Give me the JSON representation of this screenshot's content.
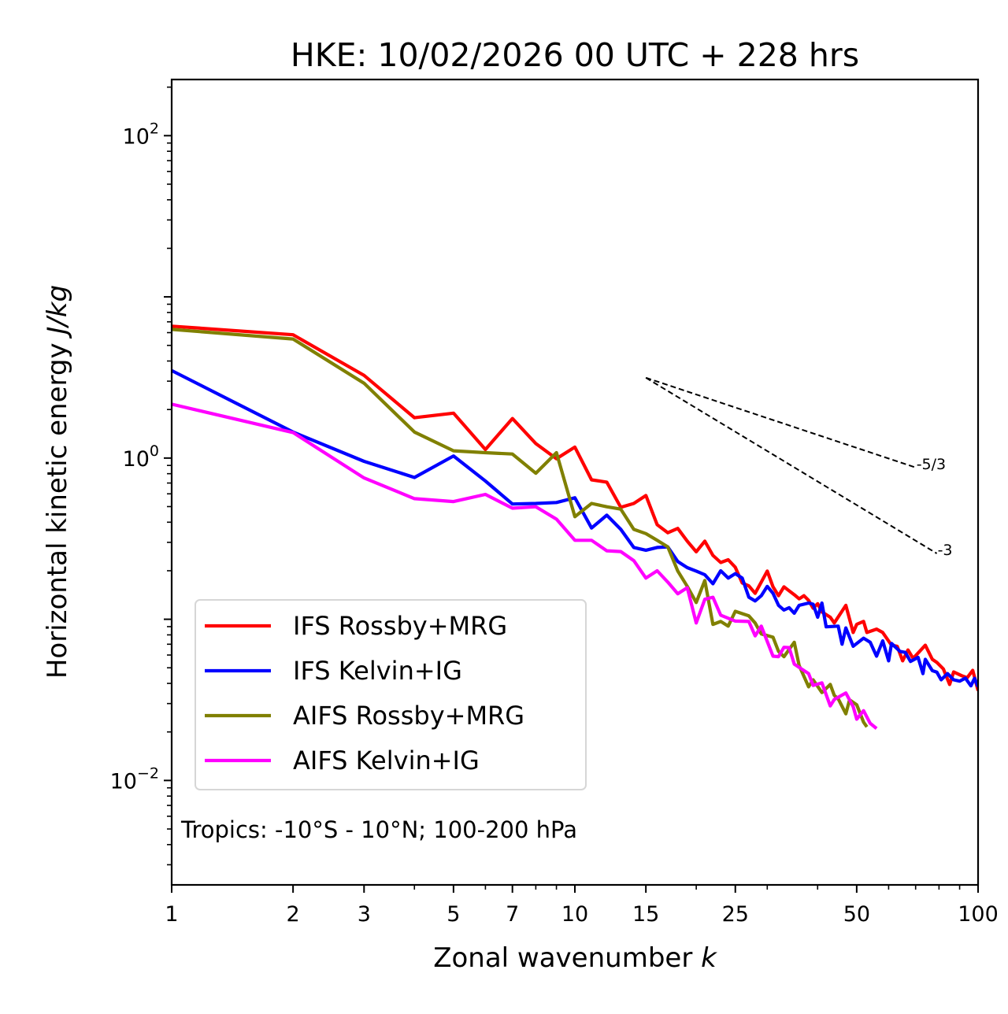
{
  "chart_data": {
    "type": "line",
    "title": "HKE: 10/02/2026 00 UTC + 228 hrs",
    "xlabel": "Zonal wavenumber",
    "xlabel_italic": "k",
    "ylabel": "Horizontal kinetic energy",
    "ylabel_italic": "J/kg",
    "xscale": "log",
    "yscale": "log",
    "xlim": [
      1,
      100
    ],
    "ylim": [
      0.00225,
      223
    ],
    "grid": false,
    "legend_position": "lower-left",
    "x_ticks": [
      {
        "value": 1,
        "label": "1"
      },
      {
        "value": 2,
        "label": "2"
      },
      {
        "value": 3,
        "label": "3"
      },
      {
        "value": 5,
        "label": "5"
      },
      {
        "value": 7,
        "label": "7"
      },
      {
        "value": 10,
        "label": "10"
      },
      {
        "value": 15,
        "label": "15"
      },
      {
        "value": 25,
        "label": "25"
      },
      {
        "value": 50,
        "label": "50"
      },
      {
        "value": 100,
        "label": "100"
      }
    ],
    "x_minor_ticks": [
      4,
      6,
      8,
      9,
      20,
      30,
      40,
      60,
      70,
      80,
      90
    ],
    "y_ticks": [
      {
        "value": 0.01,
        "base": "10",
        "exp": "−2"
      },
      {
        "value": 1,
        "base": "10",
        "exp": "0"
      },
      {
        "value": 100,
        "base": "10",
        "exp": "2"
      }
    ],
    "annotation": "Tropics: -10°S - 10°N; 100-200 hPa",
    "reference_lines": [
      {
        "label": "-5/3",
        "start": [
          15,
          3.15
        ],
        "end": [
          70,
          0.874
        ]
      },
      {
        "label": "-3",
        "start": [
          15,
          3.15
        ],
        "end": [
          79,
          0.256
        ]
      }
    ],
    "series": [
      {
        "name": "IFS Rossby+MRG",
        "color": "#ff0000",
        "x": [
          1,
          2,
          3,
          4,
          5,
          6,
          7,
          8,
          9,
          10,
          11,
          12,
          13,
          14,
          15,
          16,
          17,
          18,
          19,
          20,
          21,
          22,
          23,
          24,
          25,
          26,
          27,
          28,
          29,
          30,
          31,
          32,
          33,
          34,
          35,
          36,
          37,
          38,
          39,
          40,
          41,
          43,
          44,
          47,
          49,
          50,
          52,
          53,
          56,
          58,
          61,
          63,
          65,
          67,
          69,
          74,
          77,
          79,
          82,
          85,
          87,
          91,
          94,
          97,
          100
        ],
        "y": [
          6.58,
          5.82,
          3.26,
          1.78,
          1.9,
          1.13,
          1.76,
          1.23,
          0.99,
          1.17,
          0.733,
          0.709,
          0.495,
          0.523,
          0.586,
          0.386,
          0.344,
          0.366,
          0.305,
          0.262,
          0.305,
          0.249,
          0.225,
          0.234,
          0.21,
          0.168,
          0.161,
          0.145,
          0.17,
          0.199,
          0.159,
          0.14,
          0.159,
          0.15,
          0.142,
          0.134,
          0.14,
          0.131,
          0.117,
          0.125,
          0.111,
          0.103,
          0.0948,
          0.122,
          0.0828,
          0.093,
          0.097,
          0.0828,
          0.0869,
          0.0828,
          0.069,
          0.068,
          0.0552,
          0.0645,
          0.0572,
          0.069,
          0.0564,
          0.054,
          0.0492,
          0.0394,
          0.0471,
          0.0447,
          0.0434,
          0.0482,
          0.0361
        ]
      },
      {
        "name": "IFS Kelvin+IG",
        "color": "#0000ff",
        "x": [
          1,
          2,
          3,
          4,
          5,
          6,
          7,
          8,
          9,
          10,
          11,
          12,
          13,
          14,
          15,
          16,
          17,
          18,
          19,
          20,
          21,
          22,
          23,
          24,
          25,
          26,
          27,
          28,
          29,
          30,
          31,
          32,
          33,
          34,
          35,
          36,
          38,
          39,
          40,
          41,
          42,
          45,
          46,
          47,
          49,
          52,
          54,
          56,
          58,
          60,
          61,
          64,
          66,
          68,
          71,
          73,
          74,
          77,
          79,
          81,
          84,
          87,
          90,
          93,
          96,
          98,
          100
        ],
        "y": [
          3.49,
          1.45,
          0.954,
          0.758,
          1.03,
          0.72,
          0.519,
          0.523,
          0.53,
          0.567,
          0.368,
          0.442,
          0.361,
          0.279,
          0.268,
          0.279,
          0.281,
          0.228,
          0.209,
          0.199,
          0.189,
          0.166,
          0.2,
          0.18,
          0.192,
          0.18,
          0.137,
          0.13,
          0.14,
          0.16,
          0.145,
          0.122,
          0.114,
          0.118,
          0.109,
          0.122,
          0.126,
          0.124,
          0.103,
          0.126,
          0.0898,
          0.0907,
          0.07,
          0.0884,
          0.068,
          0.0763,
          0.072,
          0.059,
          0.0735,
          0.0552,
          0.0708,
          0.0632,
          0.0623,
          0.0547,
          0.058,
          0.046,
          0.0564,
          0.048,
          0.047,
          0.0421,
          0.046,
          0.0421,
          0.0413,
          0.0431,
          0.0386,
          0.043,
          0.0381
        ]
      },
      {
        "name": "AIFS Rossby+MRG",
        "color": "#808000",
        "x": [
          1,
          2,
          3,
          4,
          5,
          6,
          7,
          8,
          9,
          10,
          11,
          12,
          13,
          14,
          15,
          16,
          17,
          18,
          19,
          20,
          21,
          22,
          23,
          24,
          25,
          27,
          28,
          29,
          31,
          32,
          33,
          35,
          36,
          38,
          39,
          41,
          43,
          44,
          45,
          47,
          48,
          50,
          52,
          53
        ],
        "y": [
          6.28,
          5.48,
          2.91,
          1.45,
          1.11,
          1.08,
          1.06,
          0.805,
          1.08,
          0.433,
          0.523,
          0.499,
          0.482,
          0.361,
          0.34,
          0.309,
          0.281,
          0.199,
          0.16,
          0.127,
          0.174,
          0.0929,
          0.0969,
          0.0907,
          0.112,
          0.105,
          0.0948,
          0.0811,
          0.0774,
          0.0632,
          0.0586,
          0.072,
          0.0516,
          0.0381,
          0.0421,
          0.0351,
          0.0394,
          0.0337,
          0.0321,
          0.0259,
          0.0316,
          0.0295,
          0.023,
          0.0215
        ]
      },
      {
        "name": "AIFS Kelvin+IG",
        "color": "#ff00ff",
        "x": [
          1,
          2,
          3,
          4,
          5,
          6,
          7,
          8,
          9,
          10,
          11,
          12,
          13,
          14,
          15,
          16,
          17,
          18,
          19,
          20,
          21,
          22,
          23,
          25,
          27,
          28,
          29,
          31,
          32,
          33,
          34,
          35,
          38,
          39,
          41,
          43,
          44,
          47,
          49,
          50,
          52,
          54,
          56
        ],
        "y": [
          2.16,
          1.44,
          0.753,
          0.56,
          0.537,
          0.595,
          0.489,
          0.499,
          0.418,
          0.309,
          0.309,
          0.266,
          0.263,
          0.231,
          0.18,
          0.2,
          0.17,
          0.144,
          0.157,
          0.0948,
          0.133,
          0.137,
          0.106,
          0.0974,
          0.0969,
          0.0789,
          0.0907,
          0.059,
          0.0586,
          0.067,
          0.0667,
          0.0527,
          0.046,
          0.0389,
          0.0403,
          0.029,
          0.0318,
          0.0349,
          0.0287,
          0.024,
          0.0271,
          0.0226,
          0.021
        ]
      }
    ]
  }
}
